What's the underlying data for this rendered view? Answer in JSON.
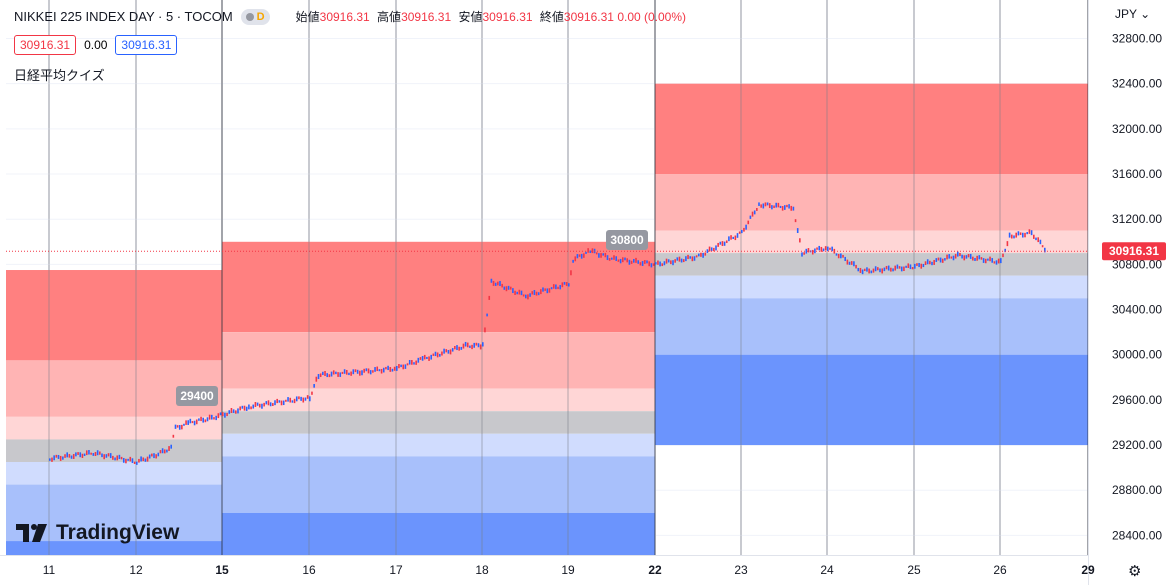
{
  "header": {
    "title": "NIKKEI 225 INDEX DAY · 5 · TOCOM",
    "badge": "D",
    "ohlc": {
      "open_label": "始値",
      "open": "30916.31",
      "high_label": "高値",
      "high": "30916.31",
      "low_label": "安値",
      "low": "30916.31",
      "close_label": "終値",
      "close": "30916.31",
      "change": "0.00 (0.00%)"
    },
    "bid": "30916.31",
    "spread": "0.00",
    "ask": "30916.31",
    "indicator_name": "日経平均クイズ"
  },
  "currency": "JPY",
  "logo_text": "TradingView",
  "colors": {
    "up": "#f23645",
    "down": "#2962ff",
    "zone_red_dark": "#ff8080",
    "zone_red_mid": "#ffb4b4",
    "zone_red_light": "#ffd6d6",
    "zone_gray": "#c8c8cc",
    "zone_blue_light": "#d0dcfe",
    "zone_blue_mid": "#a8c0fb",
    "zone_blue_dark": "#6b94fd"
  },
  "chart_data": {
    "type": "candlestick",
    "instrument": "NIKKEI 225 INDEX",
    "interval": "5",
    "ylim": [
      28200,
      33000
    ],
    "y_ticks": [
      28400,
      28800,
      29200,
      29600,
      30000,
      30400,
      30800,
      31200,
      31600,
      32000,
      32400,
      32800
    ],
    "x_ticks": [
      "11",
      "12",
      "15",
      "16",
      "17",
      "18",
      "19",
      "22",
      "23",
      "24",
      "25",
      "26",
      "29"
    ],
    "x_ticks_bold": [
      "15",
      "22",
      "29"
    ],
    "last_price": 30916.31,
    "last_price_label": "30916.31",
    "series_path": [
      [
        "11",
        29080
      ],
      [
        "11.5",
        29130
      ],
      [
        "12",
        29050
      ],
      [
        "12.5",
        29120
      ],
      [
        "12.8",
        29180
      ],
      [
        "12.9",
        29350
      ],
      [
        "13.5",
        29400
      ],
      [
        "14.5",
        29440
      ],
      [
        "15.3",
        29540
      ],
      [
        "16",
        29620
      ],
      [
        "16.1",
        29820
      ],
      [
        "16.6",
        29850
      ],
      [
        "17",
        29880
      ],
      [
        "17.3",
        29960
      ],
      [
        "17.8",
        30080
      ],
      [
        "18",
        30080
      ],
      [
        "18.1",
        30650
      ],
      [
        "18.5",
        30520
      ],
      [
        "19",
        30630
      ],
      [
        "19.1",
        30840
      ],
      [
        "19.5",
        30920
      ],
      [
        "20",
        30850
      ],
      [
        "22",
        30800
      ],
      [
        "22.5",
        30870
      ],
      [
        "23",
        31080
      ],
      [
        "23.2",
        31330
      ],
      [
        "23.6",
        31300
      ],
      [
        "23.7",
        30900
      ],
      [
        "24",
        30950
      ],
      [
        "24.4",
        30740
      ],
      [
        "25",
        30780
      ],
      [
        "25.5",
        30880
      ],
      [
        "26",
        30820
      ],
      [
        "26.2",
        31050
      ],
      [
        "26.7",
        31080
      ],
      [
        "27.1",
        30916.31
      ]
    ],
    "quiz_zones": [
      {
        "period": "week of 11th",
        "label": "",
        "bands": [
          {
            "from": 29950,
            "to": 30750,
            "color": "zone_red_dark"
          },
          {
            "from": 29450,
            "to": 29950,
            "color": "zone_red_mid"
          },
          {
            "from": 29250,
            "to": 29450,
            "color": "zone_red_light"
          },
          {
            "from": 29050,
            "to": 29250,
            "color": "zone_gray"
          },
          {
            "from": 28850,
            "to": 29050,
            "color": "zone_blue_light"
          },
          {
            "from": 28350,
            "to": 28850,
            "color": "zone_blue_mid"
          },
          {
            "from": 28200,
            "to": 28350,
            "color": "zone_blue_dark"
          }
        ]
      },
      {
        "period": "week of 15th",
        "label": "29400",
        "bands": [
          {
            "from": 30200,
            "to": 31000,
            "color": "zone_red_dark"
          },
          {
            "from": 29700,
            "to": 30200,
            "color": "zone_red_mid"
          },
          {
            "from": 29500,
            "to": 29700,
            "color": "zone_red_light"
          },
          {
            "from": 29300,
            "to": 29500,
            "color": "zone_gray"
          },
          {
            "from": 29100,
            "to": 29300,
            "color": "zone_blue_light"
          },
          {
            "from": 28600,
            "to": 29100,
            "color": "zone_blue_mid"
          },
          {
            "from": 28200,
            "to": 28600,
            "color": "zone_blue_dark"
          }
        ]
      },
      {
        "period": "week of 22nd",
        "label": "30800",
        "bands": [
          {
            "from": 31600,
            "to": 32400,
            "color": "zone_red_dark"
          },
          {
            "from": 31100,
            "to": 31600,
            "color": "zone_red_mid"
          },
          {
            "from": 30900,
            "to": 31100,
            "color": "zone_red_light"
          },
          {
            "from": 30700,
            "to": 30900,
            "color": "zone_gray"
          },
          {
            "from": 30500,
            "to": 30700,
            "color": "zone_blue_light"
          },
          {
            "from": 30000,
            "to": 30500,
            "color": "zone_blue_mid"
          },
          {
            "from": 29200,
            "to": 30000,
            "color": "zone_blue_dark"
          }
        ]
      }
    ]
  }
}
